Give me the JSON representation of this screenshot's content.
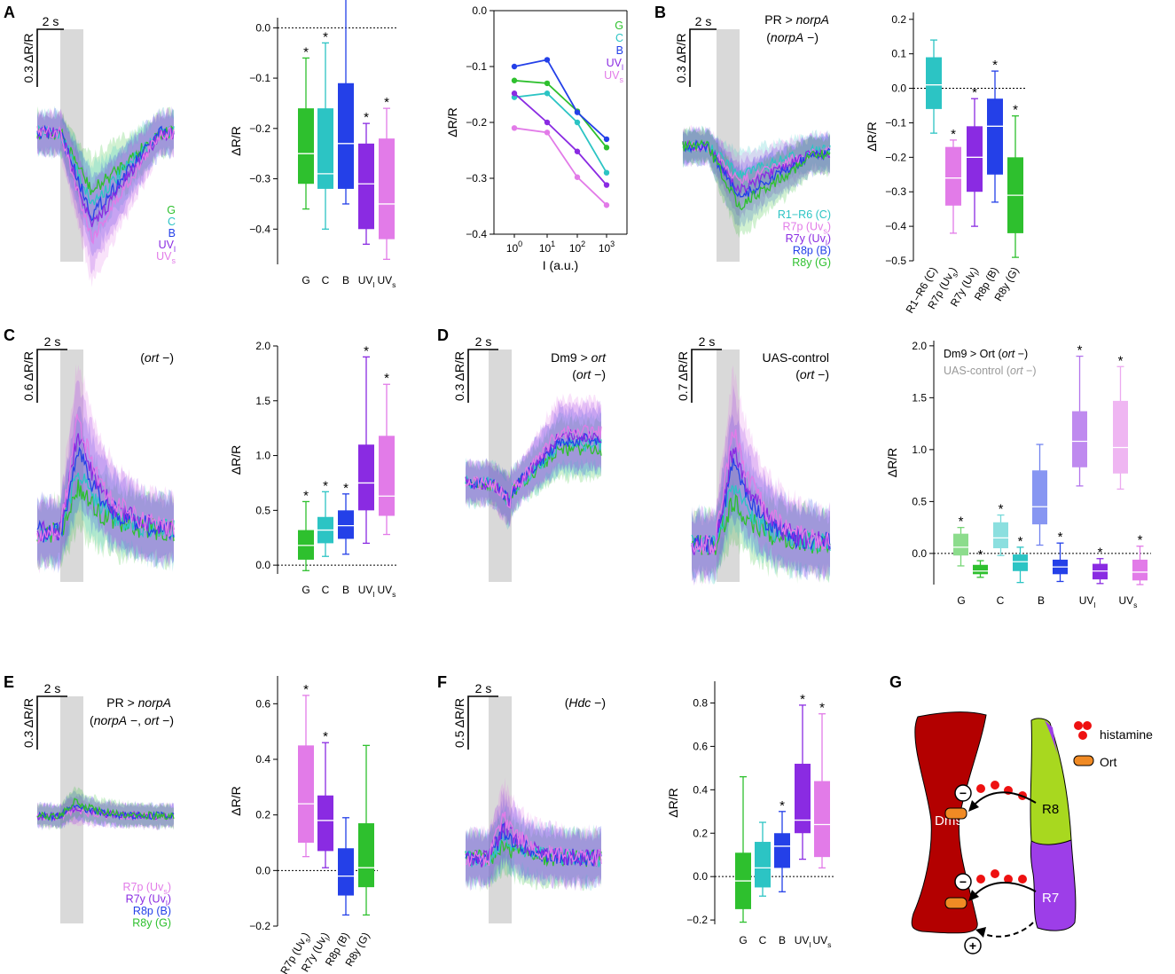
{
  "colors": {
    "G": "#2ec02e",
    "C": "#2cc4c4",
    "B": "#2440e8",
    "UVl": "#8a2be2",
    "UVs": "#e27be8",
    "Dm9": "#b30000",
    "R8": "#a8d81f",
    "R7": "#9d3ee8",
    "Ort": "#f08a24",
    "hist": "#ee1111",
    "stim": "#d9d9d9"
  },
  "panel_labels": {
    "A": "A",
    "B": "B",
    "C": "C",
    "D": "D",
    "E": "E",
    "F": "F",
    "G": "G"
  },
  "scalebars": {
    "t2s": "2 s",
    "a": "0.3 ΔR/R",
    "b": "0.3 ΔR/R",
    "c": "0.6 ΔR/R",
    "d1": "0.3 ΔR/R",
    "d2": "0.7 ΔR/R",
    "e": "0.3 ΔR/R",
    "f": "0.5 ΔR/R"
  },
  "genotypes": {
    "b1": "PR > ",
    "b1i": "norpA",
    "b2": "(",
    "b2i": "norpA",
    "b2e": " −)",
    "c1": "(",
    "c1i": "ort",
    "c1e": " −)",
    "d1a": "Dm9 > ",
    "d1ai": "ort",
    "d1b": "(",
    "d1bi": "ort",
    "d1be": " −)",
    "d2a": "UAS-control",
    "d2b": "(",
    "d2bi": "ort",
    "d2be": " −)",
    "e1": "PR > ",
    "e1i": "norpA",
    "e2": "(",
    "e2i": "norpA",
    "e2m": " −, ",
    "e2i2": "ort",
    "e2e": " −)",
    "f1": "(",
    "f1i": "Hdc",
    "f1e": " −)"
  },
  "legends": {
    "a": [
      {
        "t": "G",
        "c": "G"
      },
      {
        "t": "C",
        "c": "C"
      },
      {
        "t": "B",
        "c": "B"
      },
      {
        "t": "UV",
        "sub": "l",
        "c": "UVl"
      },
      {
        "t": "UV",
        "sub": "s",
        "c": "UVs"
      }
    ],
    "int": [
      {
        "t": "G",
        "c": "G"
      },
      {
        "t": "C",
        "c": "C"
      },
      {
        "t": "B",
        "c": "B"
      },
      {
        "t": "UV",
        "sub": "l",
        "c": "UVl"
      },
      {
        "t": "UV",
        "sub": "s",
        "c": "UVs"
      }
    ],
    "b": [
      {
        "t": "R1−R6 (C)",
        "c": "C"
      },
      {
        "t": "R7p (Uv",
        "sub": "s",
        "end": ")",
        "c": "UVs"
      },
      {
        "t": "R7y (Uv",
        "sub": "l",
        "end": ")",
        "c": "UVl"
      },
      {
        "t": "R8p (B)",
        "c": "B"
      },
      {
        "t": "R8y (G)",
        "c": "G"
      }
    ],
    "d3": [
      {
        "t": "Dm9 > Ort (",
        "it": "ort",
        "end": " −)",
        "c": "k"
      },
      {
        "t": "UAS-control (",
        "it": "ort",
        "end": " −)",
        "c": "gray"
      }
    ],
    "e": [
      {
        "t": "R7p (Uv",
        "sub": "s",
        "end": ")",
        "c": "UVs"
      },
      {
        "t": "R7y (Uv",
        "sub": "l",
        "end": ")",
        "c": "UVl"
      },
      {
        "t": "R8p (B)",
        "c": "B"
      },
      {
        "t": "R8y (G)",
        "c": "G"
      }
    ]
  },
  "chart_data": [
    {
      "id": "A_box",
      "type": "box",
      "ylabel": "ΔR/R",
      "ylim": [
        -0.47,
        0.02
      ],
      "yticks": [
        "0.0",
        "−0.1",
        "−0.2",
        "−0.3",
        "−0.4"
      ],
      "ytick_values": [
        0,
        -0.1,
        -0.2,
        -0.3,
        -0.4
      ],
      "zero_line": true,
      "categories": [
        {
          "t": "G"
        },
        {
          "t": "C"
        },
        {
          "t": "B"
        },
        {
          "t": "UV",
          "sub": "l"
        },
        {
          "t": "UV",
          "sub": "s"
        }
      ],
      "boxes": [
        {
          "c": "G",
          "min": -0.36,
          "q1": -0.31,
          "med": -0.25,
          "q3": -0.16,
          "max": -0.06,
          "star": "*"
        },
        {
          "c": "C",
          "min": -0.4,
          "q1": -0.32,
          "med": -0.29,
          "q3": -0.16,
          "max": -0.03,
          "star": "*"
        },
        {
          "c": "B",
          "min": -0.35,
          "q1": -0.32,
          "med": -0.23,
          "q3": -0.11,
          "max": 0.06,
          "star": "*"
        },
        {
          "c": "UVl",
          "min": -0.43,
          "q1": -0.4,
          "med": -0.31,
          "q3": -0.23,
          "max": -0.19,
          "star": "*"
        },
        {
          "c": "UVs",
          "min": -0.46,
          "q1": -0.42,
          "med": -0.35,
          "q3": -0.22,
          "max": -0.16,
          "star": "*"
        }
      ]
    },
    {
      "id": "A_int",
      "type": "line",
      "xlabel": "I (a.u.)",
      "ylabel": "ΔR/R",
      "ylim": [
        -0.4,
        0.0
      ],
      "yticks": [
        "0.0",
        "−0.1",
        "−0.2",
        "−0.3",
        "−0.4"
      ],
      "ytick_values": [
        0,
        -0.1,
        -0.2,
        -0.3,
        -0.4
      ],
      "xticks": [
        {
          "b": "10",
          "e": "0"
        },
        {
          "b": "10",
          "e": "1"
        },
        {
          "b": "10",
          "e": "2"
        },
        {
          "b": "10",
          "e": "3"
        }
      ],
      "series": [
        {
          "name": "G",
          "c": "G",
          "values": [
            -0.125,
            -0.13,
            -0.18,
            -0.245
          ]
        },
        {
          "name": "C",
          "c": "C",
          "values": [
            -0.155,
            -0.148,
            -0.2,
            -0.29
          ]
        },
        {
          "name": "B",
          "c": "B",
          "values": [
            -0.1,
            -0.088,
            -0.182,
            -0.23
          ]
        },
        {
          "name": "UVl",
          "c": "UVl",
          "values": [
            -0.148,
            -0.2,
            -0.252,
            -0.312
          ]
        },
        {
          "name": "UVs",
          "c": "UVs",
          "values": [
            -0.21,
            -0.218,
            -0.298,
            -0.348
          ]
        }
      ]
    },
    {
      "id": "B_box",
      "type": "box",
      "ylabel": "ΔR/R",
      "ylim": [
        -0.5,
        0.22
      ],
      "yticks": [
        "0.2",
        "0.1",
        "0.0",
        "−0.1",
        "−0.2",
        "−0.3",
        "−0.4",
        "−0.5"
      ],
      "ytick_values": [
        0.2,
        0.1,
        0,
        -0.1,
        -0.2,
        -0.3,
        -0.4,
        -0.5
      ],
      "zero_line": true,
      "rot": true,
      "categories": [
        {
          "t": "R1−R6 (C)"
        },
        {
          "t": "R7p (Uv",
          "sub": "s",
          "end": ")"
        },
        {
          "t": "R7y (Uv",
          "sub": "l",
          "end": ")"
        },
        {
          "t": "R8p (B)"
        },
        {
          "t": "R8y (G)"
        }
      ],
      "boxes": [
        {
          "c": "C",
          "min": -0.13,
          "q1": -0.06,
          "med": 0.01,
          "q3": 0.09,
          "max": 0.14,
          "star": ""
        },
        {
          "c": "UVs",
          "min": -0.42,
          "q1": -0.34,
          "med": -0.26,
          "q3": -0.17,
          "max": -0.15,
          "star": "*"
        },
        {
          "c": "UVl",
          "min": -0.4,
          "q1": -0.3,
          "med": -0.2,
          "q3": -0.11,
          "max": -0.03,
          "star": "*"
        },
        {
          "c": "B",
          "min": -0.33,
          "q1": -0.25,
          "med": -0.11,
          "q3": -0.03,
          "max": 0.05,
          "star": "*"
        },
        {
          "c": "G",
          "min": -0.49,
          "q1": -0.42,
          "med": -0.31,
          "q3": -0.2,
          "max": -0.08,
          "star": "*"
        }
      ]
    },
    {
      "id": "C_box",
      "type": "box",
      "ylabel": "ΔR/R",
      "ylim": [
        -0.08,
        2.0
      ],
      "yticks": [
        "2.0",
        "1.5",
        "1.0",
        "0.5",
        "0.0"
      ],
      "ytick_values": [
        2,
        1.5,
        1,
        0.5,
        0
      ],
      "zero_line": true,
      "categories": [
        {
          "t": "G"
        },
        {
          "t": "C"
        },
        {
          "t": "B"
        },
        {
          "t": "UV",
          "sub": "l"
        },
        {
          "t": "UV",
          "sub": "s"
        }
      ],
      "boxes": [
        {
          "c": "G",
          "min": -0.05,
          "q1": 0.05,
          "med": 0.18,
          "q3": 0.32,
          "max": 0.58,
          "star": "*"
        },
        {
          "c": "C",
          "min": 0.08,
          "q1": 0.2,
          "med": 0.32,
          "q3": 0.44,
          "max": 0.67,
          "star": "*"
        },
        {
          "c": "B",
          "min": 0.1,
          "q1": 0.24,
          "med": 0.36,
          "q3": 0.5,
          "max": 0.65,
          "star": "*"
        },
        {
          "c": "UVl",
          "min": 0.2,
          "q1": 0.5,
          "med": 0.75,
          "q3": 1.1,
          "max": 1.9,
          "star": "*"
        },
        {
          "c": "UVs",
          "min": 0.28,
          "q1": 0.45,
          "med": 0.63,
          "q3": 1.18,
          "max": 1.65,
          "star": "*"
        }
      ]
    },
    {
      "id": "D_box",
      "type": "box_paired",
      "ylabel": "ΔR/R",
      "ylim": [
        -0.3,
        2.05
      ],
      "yticks": [
        "2.0",
        "1.5",
        "1.0",
        "0.5",
        "0.0"
      ],
      "ytick_values": [
        2,
        1.5,
        1,
        0.5,
        0
      ],
      "zero_line": true,
      "categories": [
        {
          "t": "G"
        },
        {
          "t": "C"
        },
        {
          "t": "B"
        },
        {
          "t": "UV",
          "sub": "l"
        },
        {
          "t": "UV",
          "sub": "s"
        }
      ],
      "boxes": [
        {
          "c": "G",
          "light": true,
          "min": -0.12,
          "q1": -0.02,
          "med": 0.06,
          "q3": 0.19,
          "max": 0.25,
          "star": "*"
        },
        {
          "c": "G",
          "min": -0.23,
          "q1": -0.2,
          "med": -0.17,
          "q3": -0.11,
          "max": -0.07,
          "star": "*"
        },
        {
          "c": "C",
          "light": true,
          "min": -0.02,
          "q1": 0.05,
          "med": 0.15,
          "q3": 0.3,
          "max": 0.37,
          "star": "*"
        },
        {
          "c": "C",
          "min": -0.28,
          "q1": -0.17,
          "med": -0.08,
          "q3": -0.01,
          "max": 0.06,
          "star": "*"
        },
        {
          "c": "B",
          "light": true,
          "min": 0.08,
          "q1": 0.28,
          "med": 0.45,
          "q3": 0.8,
          "max": 1.05,
          "star": ""
        },
        {
          "c": "B",
          "min": -0.27,
          "q1": -0.2,
          "med": -0.13,
          "q3": -0.06,
          "max": 0.1,
          "star": "*"
        },
        {
          "c": "UVl",
          "light": true,
          "min": 0.65,
          "q1": 0.83,
          "med": 1.08,
          "q3": 1.37,
          "max": 1.9,
          "star": "*"
        },
        {
          "c": "UVl",
          "min": -0.29,
          "q1": -0.25,
          "med": -0.17,
          "q3": -0.1,
          "max": -0.05,
          "star": "*"
        },
        {
          "c": "UVs",
          "light": true,
          "min": 0.62,
          "q1": 0.77,
          "med": 1.02,
          "q3": 1.47,
          "max": 1.8,
          "star": "*"
        },
        {
          "c": "UVs",
          "min": -0.3,
          "q1": -0.26,
          "med": -0.18,
          "q3": -0.06,
          "max": 0.07,
          "star": "*"
        }
      ]
    },
    {
      "id": "E_box",
      "type": "box",
      "ylabel": "ΔR/R",
      "ylim": [
        -0.2,
        0.7
      ],
      "yticks": [
        "0.6",
        "0.4",
        "0.2",
        "0.0",
        "−0.2"
      ],
      "ytick_values": [
        0.6,
        0.4,
        0.2,
        0,
        -0.2
      ],
      "zero_line": true,
      "rot": true,
      "categories": [
        {
          "t": "R7p (Uv",
          "sub": "s",
          "end": ")"
        },
        {
          "t": "R7y (Uv",
          "sub": "l",
          "end": ")"
        },
        {
          "t": "R8p (B)"
        },
        {
          "t": "R8y (G)"
        }
      ],
      "boxes": [
        {
          "c": "UVs",
          "min": 0.05,
          "q1": 0.1,
          "med": 0.24,
          "q3": 0.45,
          "max": 0.63,
          "star": "*"
        },
        {
          "c": "UVl",
          "min": 0.01,
          "q1": 0.07,
          "med": 0.18,
          "q3": 0.27,
          "max": 0.46,
          "star": "*"
        },
        {
          "c": "B",
          "min": -0.16,
          "q1": -0.09,
          "med": -0.02,
          "q3": 0.08,
          "max": 0.19,
          "star": ""
        },
        {
          "c": "G",
          "min": -0.16,
          "q1": -0.06,
          "med": 0.01,
          "q3": 0.17,
          "max": 0.45,
          "star": ""
        }
      ]
    },
    {
      "id": "F_box",
      "type": "box",
      "ylabel": "ΔR/R",
      "ylim": [
        -0.22,
        0.9
      ],
      "yticks": [
        "0.8",
        "0.6",
        "0.4",
        "0.2",
        "0.0",
        "−0.2"
      ],
      "ytick_values": [
        0.8,
        0.6,
        0.4,
        0.2,
        0,
        -0.2
      ],
      "zero_line": true,
      "categories": [
        {
          "t": "G"
        },
        {
          "t": "C"
        },
        {
          "t": "B"
        },
        {
          "t": "UV",
          "sub": "l"
        },
        {
          "t": "UV",
          "sub": "s"
        }
      ],
      "boxes": [
        {
          "c": "G",
          "min": -0.21,
          "q1": -0.15,
          "med": -0.02,
          "q3": 0.11,
          "max": 0.46,
          "star": ""
        },
        {
          "c": "C",
          "min": -0.09,
          "q1": -0.05,
          "med": 0.04,
          "q3": 0.16,
          "max": 0.25,
          "star": ""
        },
        {
          "c": "B",
          "min": -0.07,
          "q1": 0.04,
          "med": 0.14,
          "q3": 0.2,
          "max": 0.3,
          "star": "*"
        },
        {
          "c": "UVl",
          "min": 0.08,
          "q1": 0.2,
          "med": 0.26,
          "q3": 0.52,
          "max": 0.79,
          "star": "*"
        },
        {
          "c": "UVs",
          "min": 0.04,
          "q1": 0.09,
          "med": 0.24,
          "q3": 0.44,
          "max": 0.75,
          "star": "*"
        }
      ]
    }
  ],
  "schematic": {
    "dm9": "Dm9",
    "r8": "R8",
    "r7": "R7",
    "histamine": "histamine",
    "ort": "Ort",
    "minus": "−",
    "plus": "+"
  }
}
